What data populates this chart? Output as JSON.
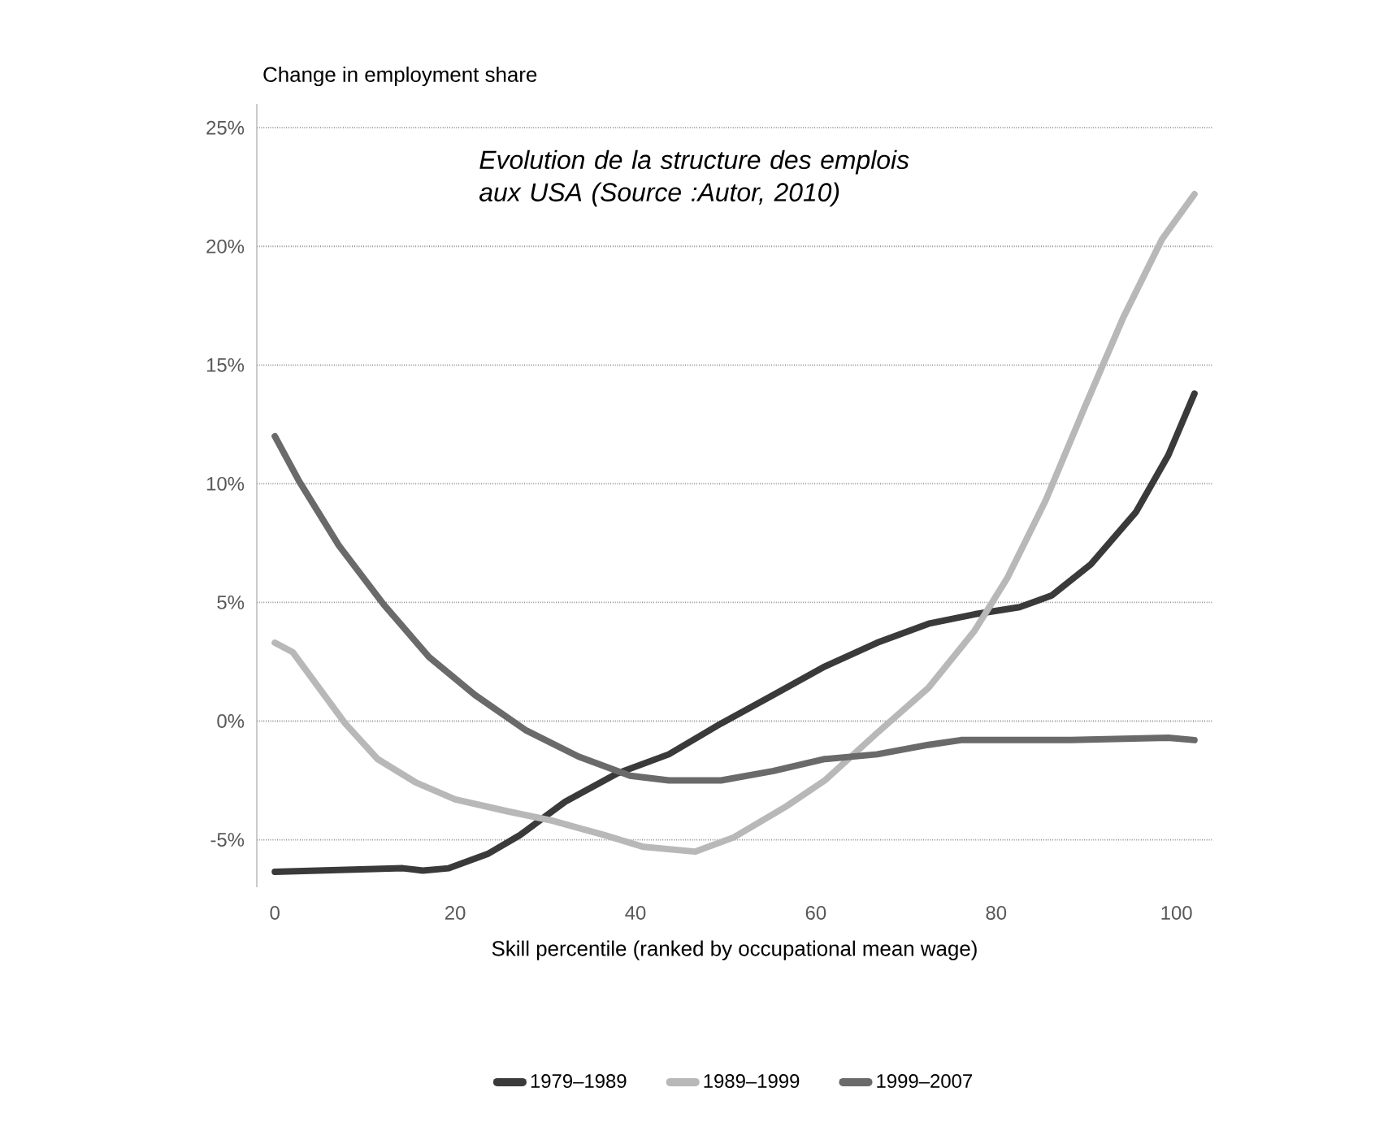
{
  "chart_data": {
    "type": "line",
    "ylabel": "Change in employment share",
    "xlabel": "Skill percentile (ranked by occupational mean wage)",
    "annotations": [
      "Evolution de la structure des emplois aux USA (Source :Autor, 2010)"
    ],
    "xlim": [
      -2,
      104
    ],
    "ylim": [
      -7,
      26
    ],
    "xticks": [
      0,
      20,
      40,
      60,
      80,
      100
    ],
    "yticks": [
      {
        "value": -5,
        "label": "-5%"
      },
      {
        "value": 0,
        "label": "0%"
      },
      {
        "value": 5,
        "label": "5%"
      },
      {
        "value": 10,
        "label": "10%"
      },
      {
        "value": 15,
        "label": "15%"
      },
      {
        "value": 20,
        "label": "20%"
      },
      {
        "value": 25,
        "label": "25%"
      }
    ],
    "grid": "y",
    "legend": "bottom",
    "marker": "none",
    "line_style": "solid",
    "series": [
      {
        "name": "1979–1989",
        "color": "#3a3a3a",
        "x": [
          0,
          14.2,
          16.4,
          19.3,
          23.6,
          27.2,
          32.2,
          38,
          43.7,
          49.5,
          55.3,
          61,
          66.8,
          72.5,
          77.6,
          82.6,
          86.2,
          90.5,
          95.5,
          99.1,
          102
        ],
        "values": [
          -6.35,
          -6.2,
          -6.3,
          -6.2,
          -5.6,
          -4.8,
          -3.4,
          -2.2,
          -1.4,
          -0.1,
          1.1,
          2.3,
          3.3,
          4.1,
          4.5,
          4.8,
          5.3,
          6.6,
          8.8,
          11.2,
          13.8
        ]
      },
      {
        "name": "1989–1999",
        "color": "#b8b8b8",
        "x": [
          0,
          2,
          4.9,
          7.8,
          11.4,
          15.7,
          20,
          25.8,
          30.8,
          36.5,
          40.9,
          46.6,
          50.9,
          56.7,
          61,
          66.8,
          72.5,
          77.6,
          81.2,
          85.5,
          89.8,
          94.1,
          98.4,
          102
        ],
        "values": [
          3.3,
          2.9,
          1.4,
          -0.1,
          -1.6,
          -2.6,
          -3.3,
          -3.8,
          -4.2,
          -4.8,
          -5.3,
          -5.5,
          -4.9,
          -3.6,
          -2.5,
          -0.5,
          1.4,
          3.8,
          6.0,
          9.3,
          13.2,
          17.0,
          20.3,
          22.2
        ]
      },
      {
        "name": "1999–2007",
        "color": "#6a6a6a",
        "x": [
          0,
          2.7,
          7.1,
          12.1,
          17.1,
          22.2,
          27.9,
          33.7,
          39.4,
          43.7,
          49.5,
          55.3,
          61,
          66.8,
          72.5,
          76.1,
          88.3,
          99.1,
          102
        ],
        "values": [
          12.0,
          10.1,
          7.4,
          4.9,
          2.7,
          1.1,
          -0.4,
          -1.5,
          -2.3,
          -2.5,
          -2.5,
          -2.1,
          -1.6,
          -1.4,
          -1.0,
          -0.8,
          -0.8,
          -0.7,
          -0.8
        ]
      }
    ]
  }
}
